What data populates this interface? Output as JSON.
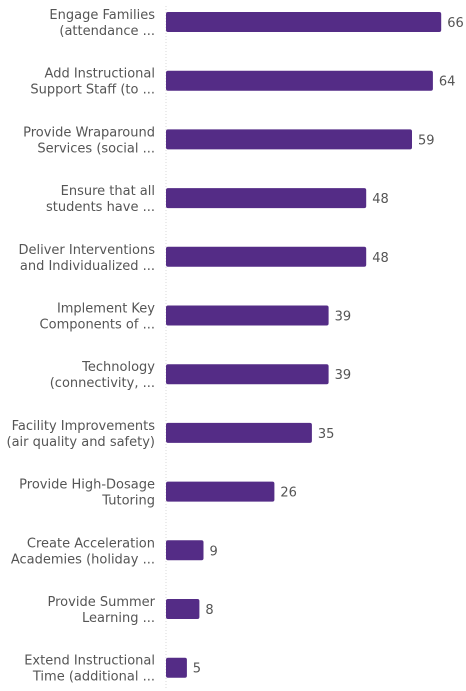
{
  "chart_data": {
    "type": "bar",
    "orientation": "horizontal",
    "categories": [
      [
        "Engage Families",
        "(attendance ..."
      ],
      [
        "Add Instructional",
        "Support Staff (to ..."
      ],
      [
        "Provide Wraparound",
        "Services (social ..."
      ],
      [
        "Ensure that all",
        "students have ..."
      ],
      [
        "Deliver Interventions",
        "and Individualized ..."
      ],
      [
        "Implement Key",
        "Components of ..."
      ],
      [
        "Technology",
        "(connectivity, ..."
      ],
      [
        "Facility Improvements",
        "(air quality and safety)"
      ],
      [
        "Provide High-Dosage",
        "Tutoring"
      ],
      [
        "Create Acceleration",
        "Academies (holiday ..."
      ],
      [
        "Provide Summer",
        "Learning ..."
      ],
      [
        "Extend Instructional",
        "Time (additional ..."
      ]
    ],
    "values": [
      66,
      64,
      59,
      48,
      48,
      39,
      39,
      35,
      26,
      9,
      8,
      5
    ],
    "title": "",
    "xlabel": "",
    "ylabel": "",
    "xlim": [
      0,
      70
    ],
    "grid": false,
    "legend": "none",
    "colors": {
      "bar": "#542c86",
      "axis": "#d9d9d9",
      "text": "#555555"
    }
  }
}
